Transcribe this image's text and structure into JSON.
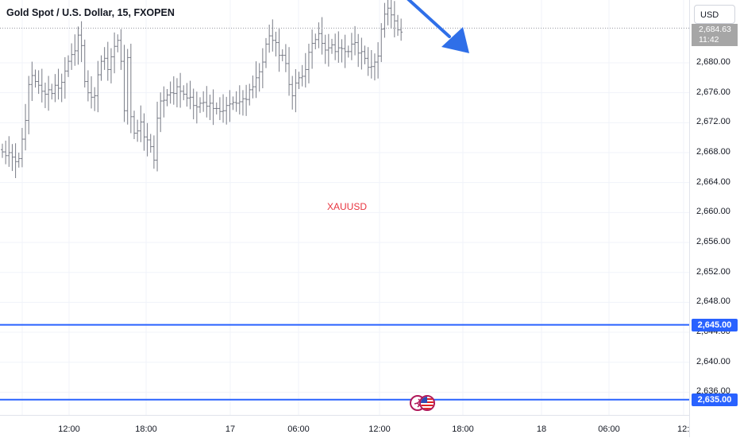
{
  "header": {
    "title": "Gold Spot / U.S. Dollar, 15, FXOPEN"
  },
  "right_axis": {
    "currency_label": "USD",
    "current_price_label": "2,684.63",
    "countdown_label": "11:42"
  },
  "watermark": {
    "symbol": "XAUUSD"
  },
  "levels": [
    {
      "label": "2,645.00",
      "value": 2645,
      "color": "#2962ff"
    },
    {
      "label": "2,635.00",
      "value": 2635,
      "color": "#2962ff"
    }
  ],
  "events": {
    "icons": [
      "earnings-icon",
      "us-flag-icon"
    ]
  },
  "chart_data": {
    "type": "ohlc",
    "title": "Gold Spot / U.S. Dollar, 15, FXOPEN",
    "xlabel": "",
    "ylabel": "",
    "x_ticks": [
      "12:00",
      "18:00",
      "17",
      "06:00",
      "12:00",
      "18:00",
      "18",
      "06:00",
      "12:"
    ],
    "y_ticks": [
      "2,636.00",
      "2,640.00",
      "2,644.00",
      "2,648.00",
      "2,652.00",
      "2,656.00",
      "2,660.00",
      "2,664.00",
      "2,668.00",
      "2,672.00",
      "2,676.00",
      "2,680.00"
    ],
    "ylim": [
      2635,
      2688
    ],
    "series": [
      {
        "close": [
          2668.1,
          2667.6,
          2668.0,
          2667.4,
          2666.8,
          2667.2,
          2669.8,
          2672.3,
          2677.1,
          2678.3,
          2677.5,
          2677.0,
          2676.2,
          2675.8,
          2676.4,
          2675.9,
          2677.0,
          2676.6,
          2677.4,
          2678.9,
          2680.2,
          2681.1,
          2681.6,
          2683.7,
          2682.3,
          2677.5,
          2676.0,
          2675.4,
          2675.6,
          2678.4,
          2680.2,
          2680.6,
          2679.1,
          2680.8,
          2682.2,
          2683.0,
          2680.2,
          2673.6,
          2680.7,
          2672.8,
          2670.6,
          2670.9,
          2672.1,
          2670.1,
          2669.7,
          2668.8,
          2667.0,
          2672.6,
          2674.9,
          2675.0,
          2675.7,
          2676.0,
          2675.9,
          2676.8,
          2676.2,
          2675.8,
          2675.3,
          2675.4,
          2674.3,
          2674.1,
          2674.6,
          2674.7,
          2674.2,
          2674.6,
          2673.9,
          2673.9,
          2673.5,
          2673.6,
          2674.3,
          2674.5,
          2674.7,
          2674.6,
          2674.8,
          2675.2,
          2675.1,
          2676.4,
          2676.8,
          2678.0,
          2678.8,
          2680.1,
          2682.5,
          2683.6,
          2683.0,
          2682.7,
          2681.0,
          2681.0,
          2679.9,
          2677.1,
          2675.6,
          2677.3,
          2678.0,
          2678.2,
          2679.1,
          2681.4,
          2682.6,
          2683.1,
          2683.9,
          2682.6,
          2681.7,
          2682.0,
          2682.4,
          2681.5,
          2682.0,
          2681.9,
          2681.5,
          2681.5,
          2682.5,
          2682.7,
          2681.3,
          2681.5,
          2680.6,
          2679.4,
          2679.5,
          2680.1,
          2680.9,
          2684.5,
          2686.5,
          2687.3,
          2686.4,
          2685.6,
          2684.4,
          2684.1
        ]
      }
    ],
    "annotations": [
      "down-arrow"
    ]
  }
}
